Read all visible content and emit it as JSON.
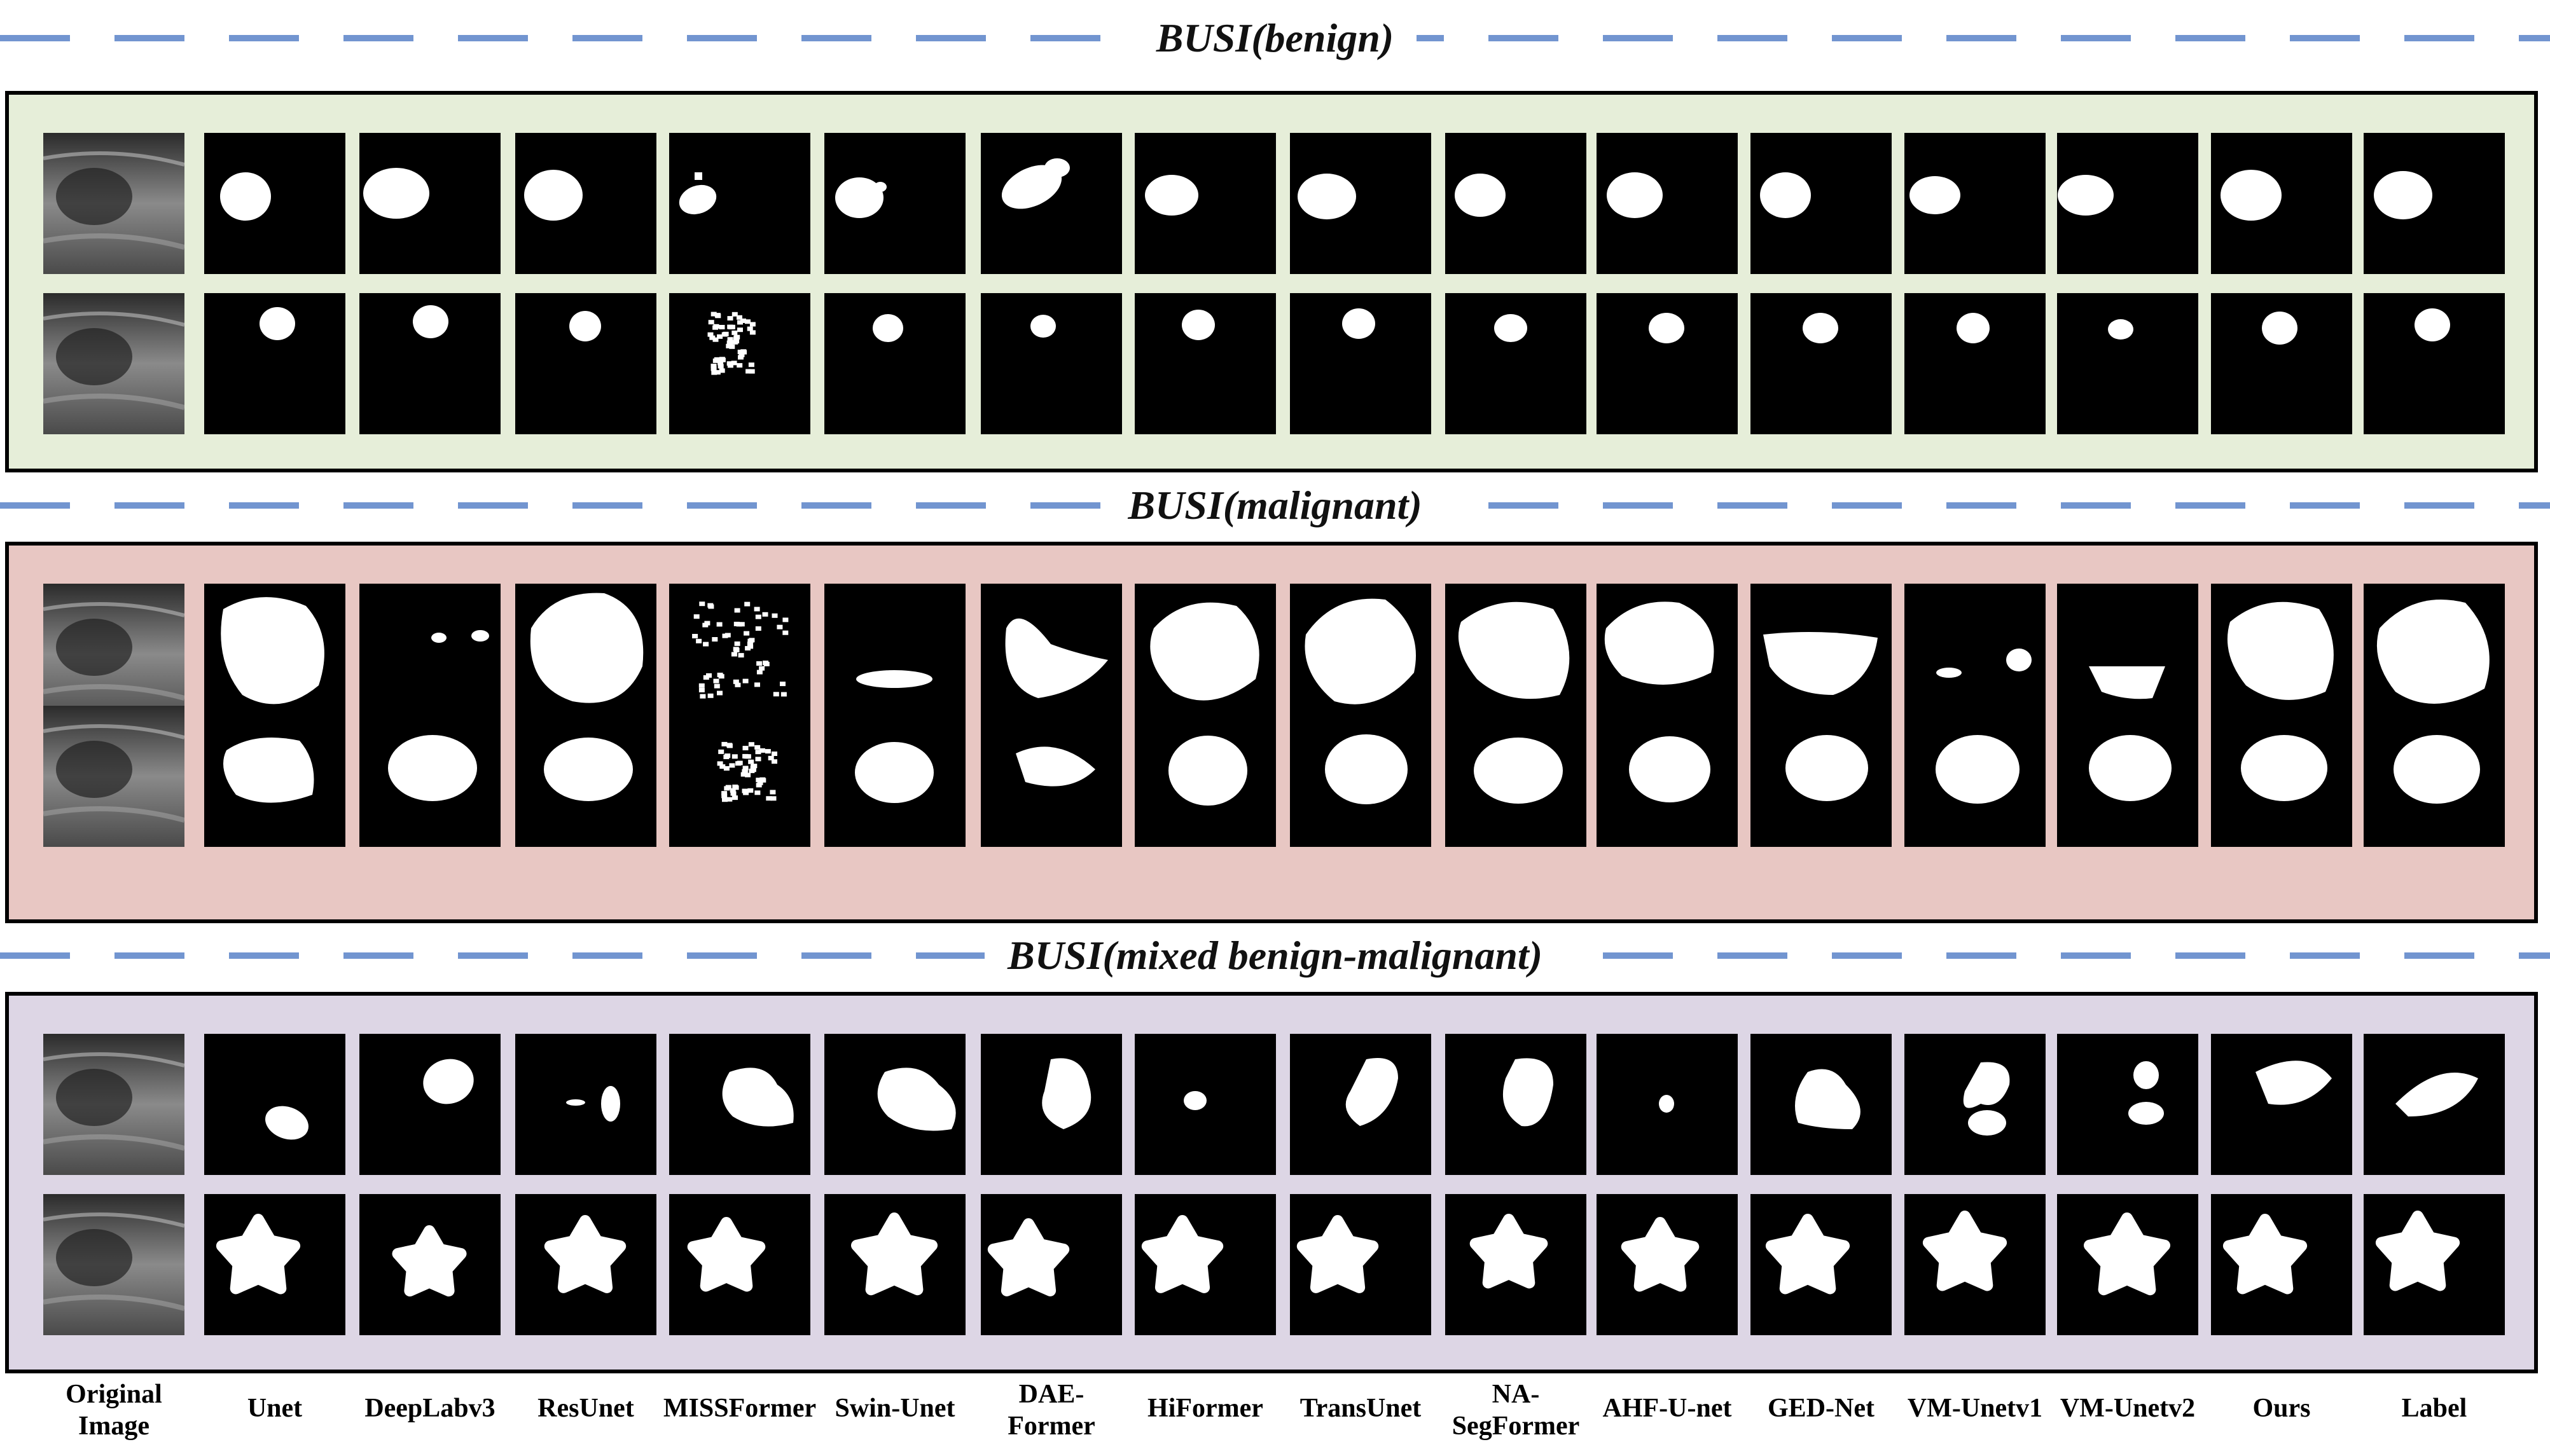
{
  "sections": [
    {
      "title": "BUSI(benign)",
      "panel_color": "#e6eed9"
    },
    {
      "title": "BUSI(malignant)",
      "panel_color": "#e8c7c3"
    },
    {
      "title": "BUSI(mixed benign-malignant)",
      "panel_color": "#ddd6e5"
    }
  ],
  "columns": [
    "Original\nImage",
    "Unet",
    "DeepLabv3",
    "ResUnet",
    "MISSFormer",
    "Swin-Unet",
    "DAE-\nFormer",
    "HiFormer",
    "TransUnet",
    "NA-\nSegFormer",
    "AHF-U-net",
    "GED-Net",
    "VM-Unetv1",
    "VM-Unetv2",
    "Ours",
    "Label"
  ],
  "style": {
    "dash_color": "#7295d0",
    "mask_color": "#ffffff",
    "tile_color": "#000000"
  }
}
